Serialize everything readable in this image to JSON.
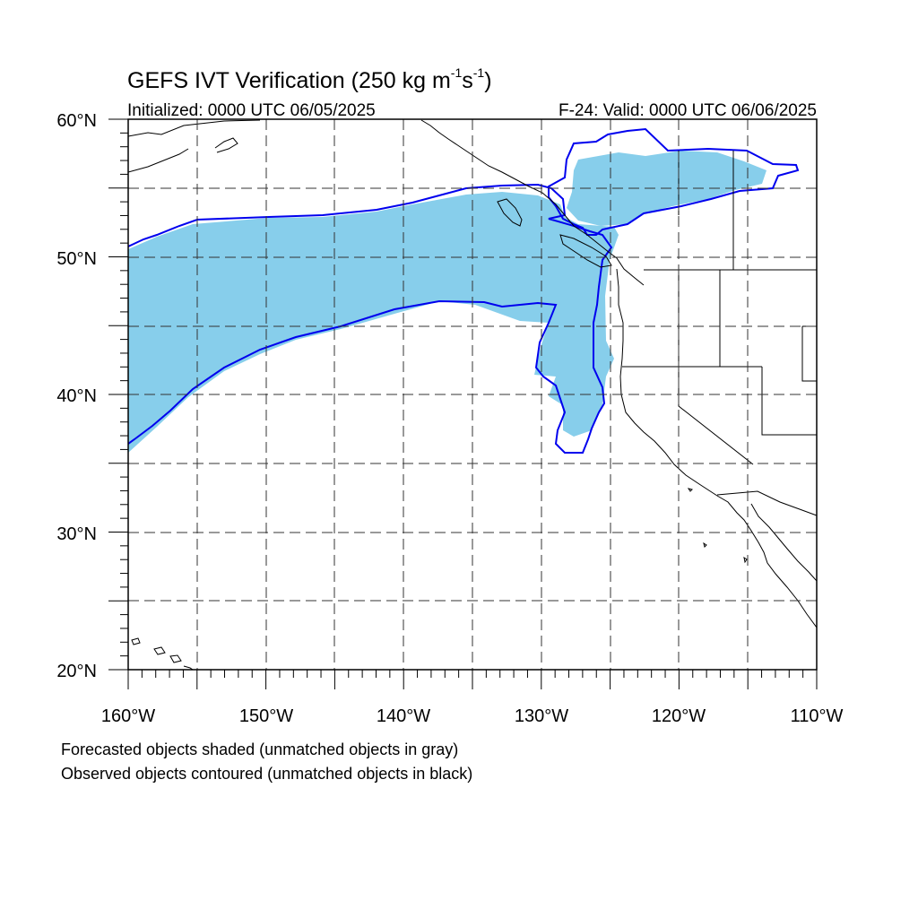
{
  "header": {
    "title_main": "GEFS IVT Verification (250 kg m",
    "title_exp1": "-1",
    "title_mid": "s",
    "title_exp2": "-1",
    "title_close": ")",
    "initialized": "Initialized: 0000 UTC 06/05/2025",
    "valid": "F-24: Valid: 0000 UTC 06/06/2025"
  },
  "axes": {
    "lat_labels": [
      "60°N",
      "50°N",
      "40°N",
      "30°N",
      "20°N"
    ],
    "lon_labels": [
      "160°W",
      "150°W",
      "140°W",
      "130°W",
      "120°W",
      "110°W"
    ],
    "lat_range": [
      20,
      60
    ],
    "lon_range": [
      -160,
      -110
    ],
    "gridlines": "dashed, every 5 degrees"
  },
  "legend": {
    "line1": "Forecasted objects shaded (unmatched objects in gray)",
    "line2": "Observed objects contoured (unmatched objects in black)"
  },
  "colors": {
    "forecast_fill": "#87ceeb",
    "observed_contour": "#0000ee",
    "coastline": "#000000",
    "grid": "#555555"
  }
}
